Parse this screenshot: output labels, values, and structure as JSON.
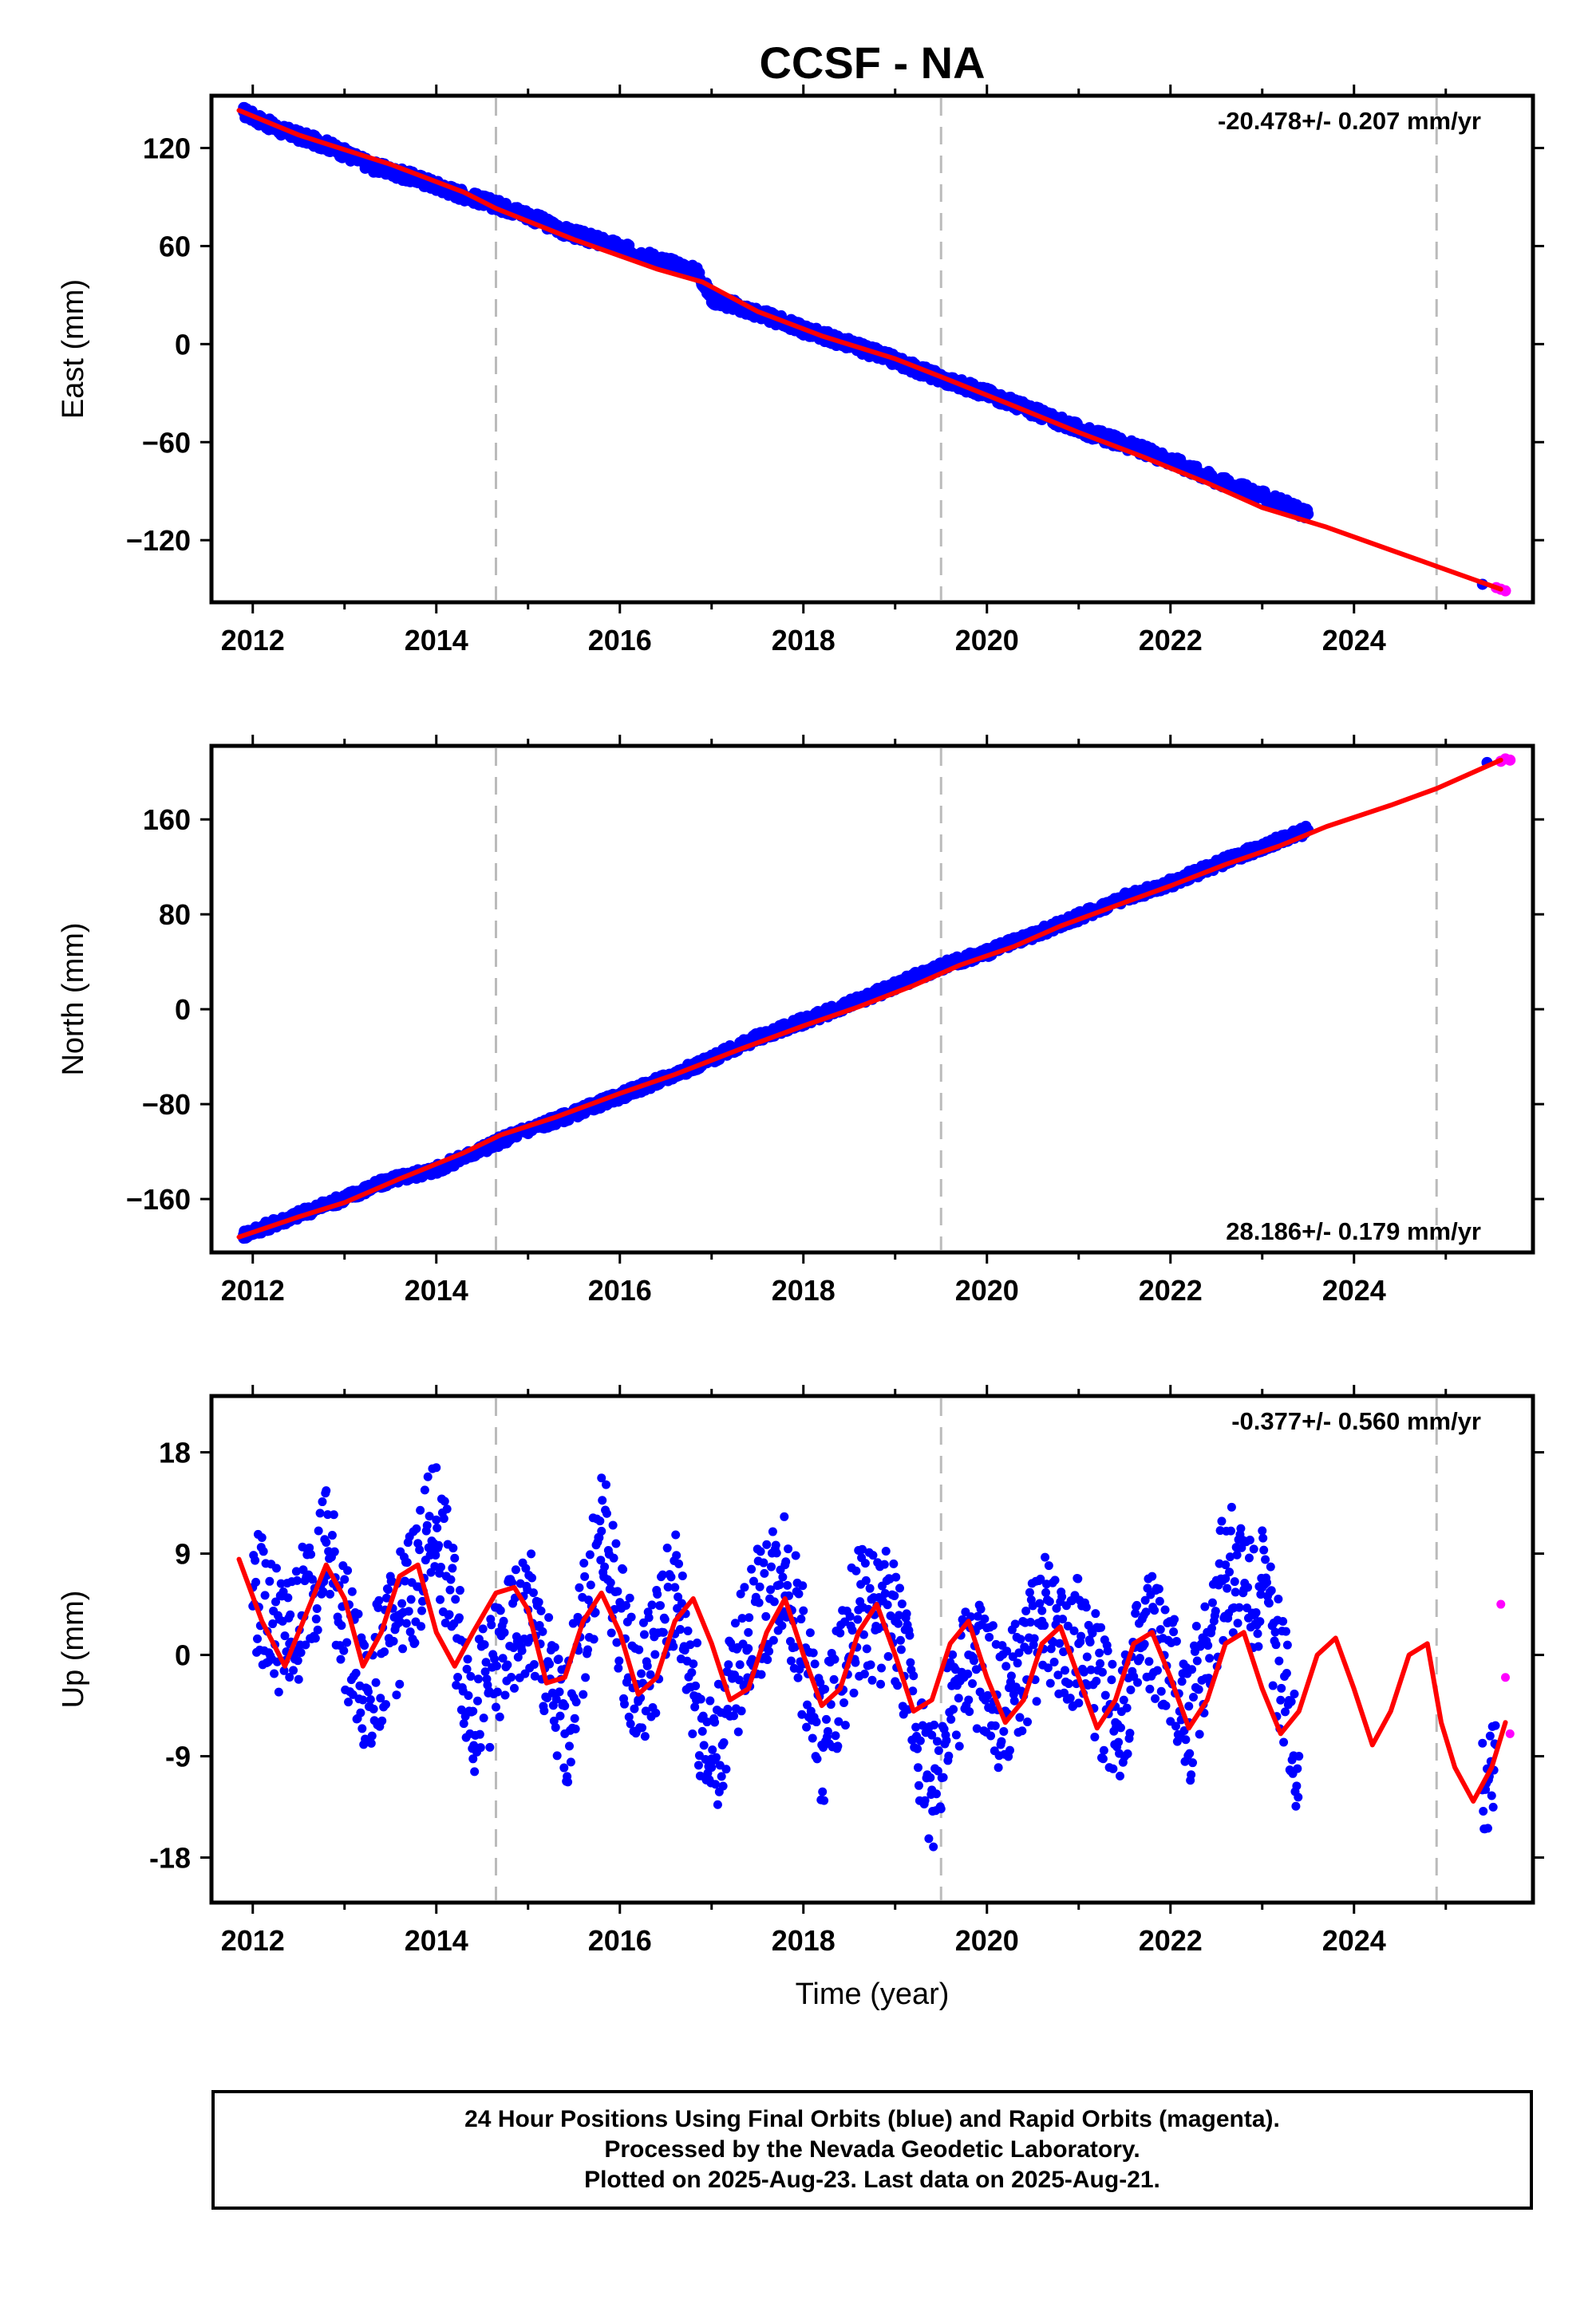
{
  "chart_data": {
    "type": "scatter",
    "title": "CCSF - NA",
    "xlabel": "Time (year)",
    "x_ticks": [
      "2012",
      "2014",
      "2016",
      "2018",
      "2020",
      "2022",
      "2024"
    ],
    "xlim": [
      2011.55,
      2025.95
    ],
    "offsets": [
      2014.65,
      2019.5,
      2024.9
    ],
    "colors": {
      "final": "#0000ff",
      "rapid": "#ff00ff",
      "model": "#ff0000",
      "offset_line": "#bbbbbb"
    },
    "panels": [
      {
        "component": "East",
        "ylabel": "East (mm)",
        "rate": "-20.478+/- 0.207 mm/yr",
        "rate_position": "top-right",
        "ylim": [
          -158,
          152
        ],
        "yticks": [
          "120",
          "60",
          "0",
          "−60",
          "−120"
        ],
        "model": {
          "x": [
            2011.85,
            2012.5,
            2013.5,
            2014.3,
            2014.65,
            2015.5,
            2016.4,
            2016.9,
            2017.5,
            2018.2,
            2019.0,
            2019.5,
            2020.3,
            2021.0,
            2021.7,
            2022.4,
            2023.0,
            2023.7,
            2024.4,
            2024.9,
            2025.6
          ],
          "y": [
            143,
            128,
            110,
            93,
            83,
            64,
            46,
            38,
            20,
            5,
            -9,
            -20,
            -38,
            -54,
            -69,
            -85,
            -100,
            -112,
            -126,
            -136,
            -150
          ]
        },
        "final": {
          "x": [
            2011.9,
            2012.3,
            2012.8,
            2013.3,
            2013.8,
            2014.2,
            2014.95,
            2015.4,
            2015.9,
            2016.4,
            2016.85,
            2017.0,
            2017.5,
            2018.0,
            2018.5,
            2019.0,
            2019.5,
            2020.0,
            2020.5,
            2021.0,
            2021.5,
            2022.0,
            2022.5,
            2023.0,
            2023.5,
            2025.4
          ],
          "y": [
            142,
            131,
            122,
            109,
            101,
            93,
            80,
            69,
            61,
            52,
            44,
            28,
            19,
            9,
            0,
            -10,
            -21,
            -30,
            -41,
            -52,
            -61,
            -71,
            -83,
            -93,
            -104,
            -147
          ]
        },
        "rapid": {
          "x": [
            2025.55,
            2025.6,
            2025.65
          ],
          "y": [
            -149,
            -150,
            -151
          ]
        }
      },
      {
        "component": "North",
        "ylabel": "North (mm)",
        "rate": "28.186+/- 0.179 mm/yr",
        "rate_position": "bottom-right",
        "ylim": [
          -205,
          222
        ],
        "yticks": [
          "160",
          "80",
          "0",
          "−80",
          "−160"
        ],
        "model": {
          "x": [
            2011.85,
            2012.5,
            2013.0,
            2013.6,
            2014.3,
            2014.7,
            2015.3,
            2016.0,
            2016.6,
            2017.3,
            2018.0,
            2018.6,
            2019.2,
            2019.7,
            2020.3,
            2020.8,
            2021.5,
            2022.0,
            2022.6,
            2023.2,
            2023.7,
            2024.4,
            2024.9,
            2025.6
          ],
          "y": [
            -192,
            -175,
            -163,
            -143,
            -121,
            -106,
            -91,
            -71,
            -55,
            -34,
            -14,
            2,
            20,
            37,
            53,
            70,
            90,
            104,
            122,
            138,
            154,
            172,
            186,
            210
          ]
        },
        "final": {
          "x": [
            2011.9,
            2012.4,
            2012.9,
            2013.5,
            2014.0,
            2014.9,
            2015.5,
            2016.0,
            2016.5,
            2017.0,
            2017.5,
            2018.0,
            2018.5,
            2019.0,
            2019.5,
            2020.0,
            2020.5,
            2021.0,
            2021.5,
            2022.0,
            2022.5,
            2023.0,
            2023.5,
            2025.45
          ],
          "y": [
            -190,
            -176,
            -162,
            -144,
            -135,
            -104,
            -88,
            -73,
            -58,
            -42,
            -24,
            -10,
            4,
            20,
            36,
            48,
            62,
            78,
            94,
            106,
            122,
            137,
            151,
            208
          ]
        },
        "rapid": {
          "x": [
            2025.6,
            2025.65,
            2025.7
          ],
          "y": [
            209,
            211,
            210
          ]
        }
      },
      {
        "component": "Up",
        "ylabel": "Up (mm)",
        "rate": "-0.377+/- 0.560 mm/yr",
        "rate_position": "top-right",
        "ylim": [
          -22,
          23
        ],
        "yticks": [
          "18",
          "9",
          "0",
          "-9",
          "-18"
        ],
        "model": {
          "x": [
            2011.85,
            2012.1,
            2012.35,
            2012.6,
            2012.8,
            2013.0,
            2013.2,
            2013.4,
            2013.6,
            2013.8,
            2014.0,
            2014.2,
            2014.4,
            2014.65,
            2014.85,
            2015.0,
            2015.2,
            2015.4,
            2015.6,
            2015.8,
            2016.0,
            2016.2,
            2016.4,
            2016.6,
            2016.8,
            2017.0,
            2017.2,
            2017.4,
            2017.6,
            2017.8,
            2018.0,
            2018.2,
            2018.4,
            2018.6,
            2018.8,
            2019.0,
            2019.2,
            2019.4,
            2019.6,
            2019.8,
            2020.0,
            2020.2,
            2020.4,
            2020.6,
            2020.8,
            2021.0,
            2021.2,
            2021.4,
            2021.6,
            2021.8,
            2022.0,
            2022.2,
            2022.4,
            2022.6,
            2022.8,
            2023.0,
            2023.2,
            2023.4,
            2023.6,
            2023.8,
            2024.0,
            2024.2,
            2024.4,
            2024.6,
            2024.8,
            2024.95,
            2025.1,
            2025.3,
            2025.5,
            2025.65
          ],
          "y": [
            8.5,
            3,
            -1,
            4,
            8,
            5,
            -1,
            2,
            7,
            8,
            2,
            -1,
            2,
            5.5,
            6,
            4,
            -2.5,
            -2,
            3,
            5.5,
            2,
            -3.5,
            -2,
            3,
            5,
            1,
            -4,
            -3,
            2,
            5,
            0,
            -4.5,
            -3,
            2,
            4.5,
            0,
            -5,
            -4,
            1,
            3,
            -2,
            -6,
            -4,
            1,
            2.5,
            -2,
            -6.5,
            -4,
            1,
            2,
            -2,
            -6.5,
            -4,
            1,
            2,
            -3,
            -7,
            -5,
            0,
            1.5,
            -3,
            -8,
            -5,
            0,
            1,
            -6,
            -10,
            -13,
            -10,
            -6
          ]
        },
        "final": {
          "x": [
            2012.0,
            2012.4,
            2012.8,
            2013.2,
            2013.6,
            2014.0,
            2014.4,
            2015.0,
            2015.4,
            2015.8,
            2016.2,
            2016.6,
            2017.0,
            2017.4,
            2017.8,
            2018.2,
            2018.6,
            2019.0,
            2019.4,
            2019.8,
            2020.2,
            2020.6,
            2021.0,
            2021.4,
            2021.8,
            2022.2,
            2022.6,
            2023.0,
            2023.4,
            2025.4,
            2025.55
          ],
          "y": [
            6,
            1,
            10,
            -4,
            3,
            12,
            -5,
            4,
            -7,
            11,
            -4,
            6,
            -10,
            2,
            8,
            -8,
            4,
            3,
            -12,
            0,
            -5,
            3,
            1,
            -6,
            2,
            -6,
            8,
            6,
            -9,
            -12,
            -8
          ]
        },
        "rapid": {
          "x": [
            2025.6,
            2025.65,
            2025.7
          ],
          "y": [
            4.5,
            -2,
            -7
          ]
        }
      }
    ]
  },
  "footer": {
    "line1": "24 Hour Positions Using Final Orbits (blue) and Rapid Orbits (magenta).",
    "line2": "Processed by the Nevada Geodetic Laboratory.",
    "line3": "Plotted on 2025-Aug-23. Last data on 2025-Aug-21."
  }
}
